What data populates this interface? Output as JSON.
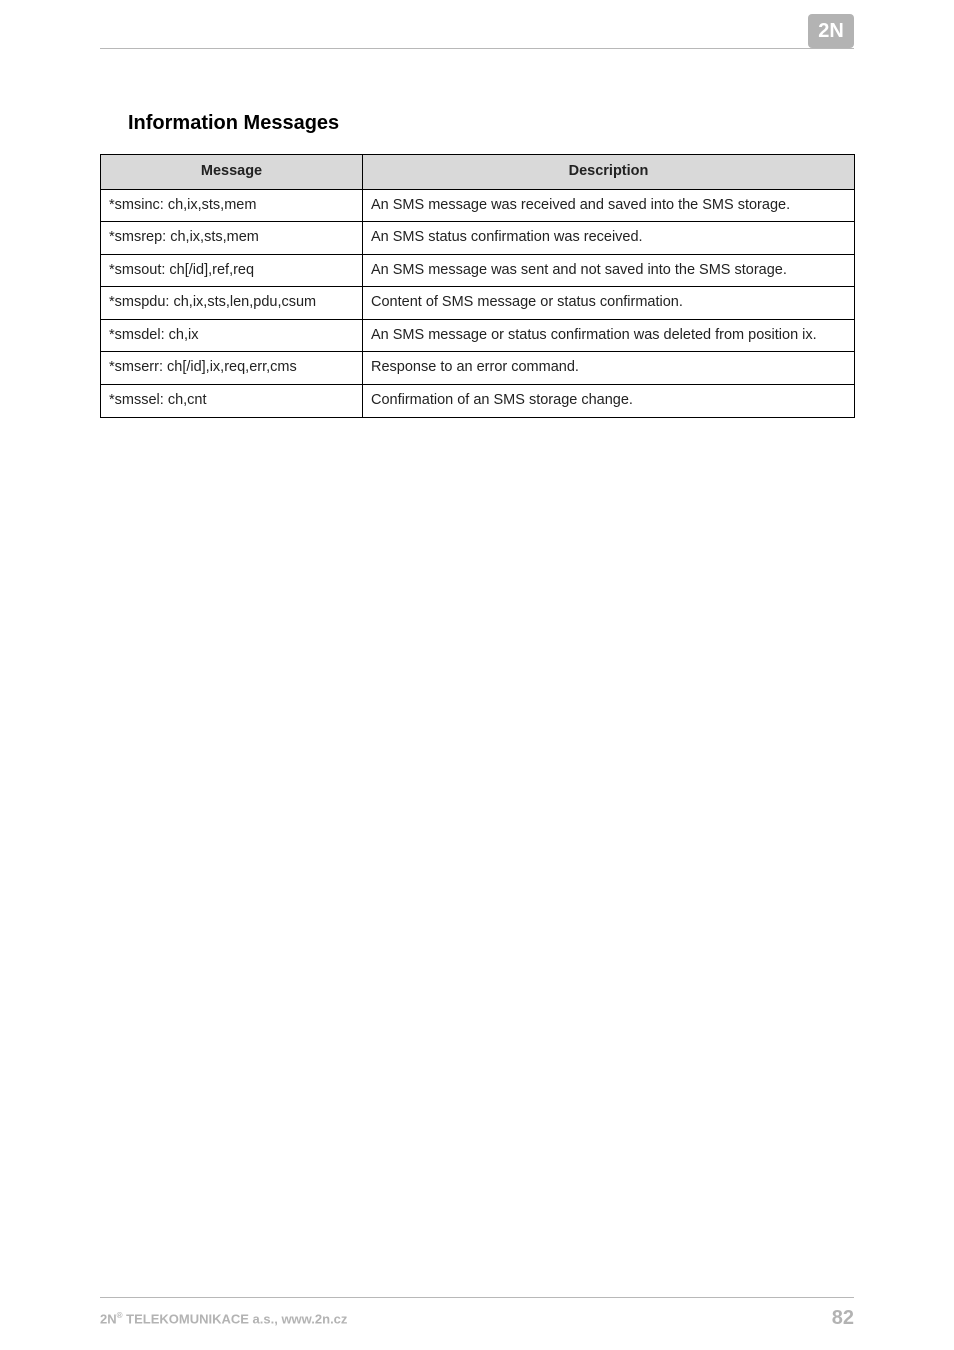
{
  "logo": {
    "text": "2N"
  },
  "heading": "Information Messages",
  "table": {
    "headers": {
      "message": "Message",
      "description": "Description"
    },
    "rows": [
      {
        "message": "*smsinc: ch,ix,sts,mem",
        "description": "An SMS message was received and saved into the SMS storage."
      },
      {
        "message": "*smsrep: ch,ix,sts,mem",
        "description": "An SMS status confirmation was received."
      },
      {
        "message": "*smsout: ch[/id],ref,req",
        "description": "An SMS message was sent and not saved into the SMS storage."
      },
      {
        "message": "*smspdu: ch,ix,sts,len,pdu,csum",
        "description": "Content of SMS message or status confirmation."
      },
      {
        "message": "*smsdel: ch,ix",
        "description": "An SMS message or status confirmation was deleted from position ix."
      },
      {
        "message": "*smserr: ch[/id],ix,req,err,cms",
        "description": "Response to an error command."
      },
      {
        "message": "*smssel: ch,cnt",
        "description": "Confirmation of an SMS storage change."
      }
    ]
  },
  "footer": {
    "left_prefix": "2N",
    "left_sup": "®",
    "left_rest": " TELEKOMUNIKACE a.s., www.2n.cz",
    "page": "82"
  }
}
